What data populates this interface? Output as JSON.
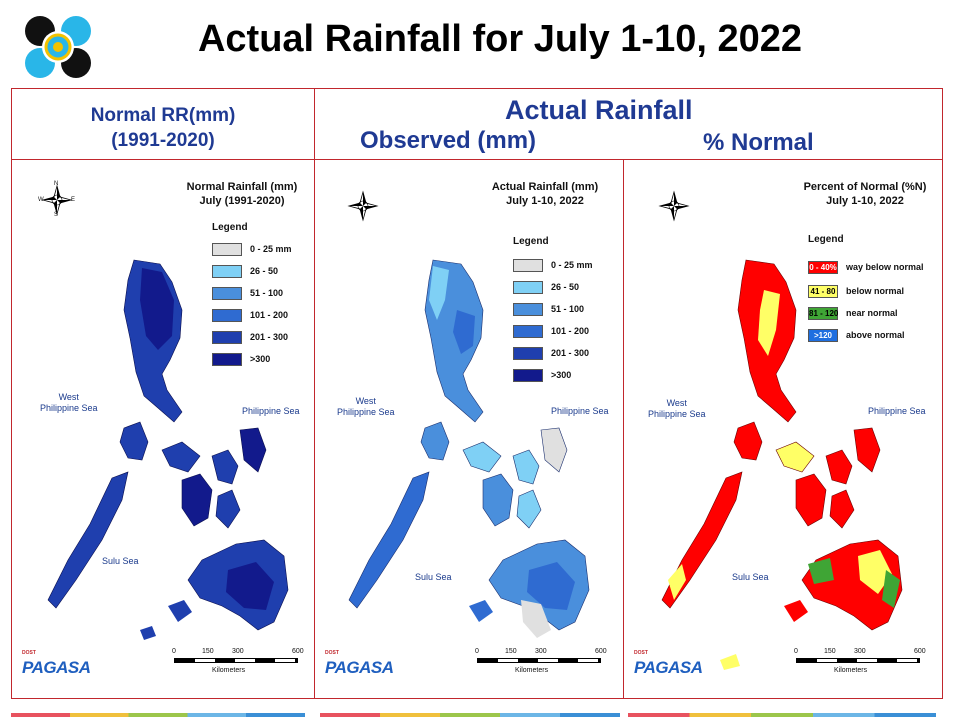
{
  "title": "Actual Rainfall for July 1-10, 2022",
  "headers": {
    "left_line1": "Normal RR(mm)",
    "left_line2": "(1991-2020)",
    "right_top": "Actual Rainfall",
    "right_observed": "Observed (mm)",
    "right_normal": "% Normal"
  },
  "maps": [
    {
      "title_line1": "Normal Rainfall (mm)",
      "title_line2": "July (1991-2020)",
      "legend_title": "Legend",
      "legend": [
        {
          "label": "0 - 25 mm",
          "color": "#e0e0e0"
        },
        {
          "label": "26 - 50",
          "color": "#7fd0f5"
        },
        {
          "label": "51 - 100",
          "color": "#4a8fdc"
        },
        {
          "label": "101 - 200",
          "color": "#2f6bd1"
        },
        {
          "label": "201 - 300",
          "color": "#1f3fae"
        },
        {
          "label": ">300",
          "color": "#121a8c"
        }
      ]
    },
    {
      "title_line1": "Actual Rainfall (mm)",
      "title_line2": "July 1-10, 2022",
      "legend_title": "Legend",
      "legend": [
        {
          "label": "0 - 25 mm",
          "color": "#e0e0e0"
        },
        {
          "label": "26 - 50",
          "color": "#7fd0f5"
        },
        {
          "label": "51 - 100",
          "color": "#4a8fdc"
        },
        {
          "label": "101 - 200",
          "color": "#2f6bd1"
        },
        {
          "label": "201 - 300",
          "color": "#1f3fae"
        },
        {
          "label": ">300",
          "color": "#121a8c"
        }
      ]
    },
    {
      "title_line1": "Percent of Normal (%N)",
      "title_line2": "July 1-10, 2022",
      "legend_title": "Legend",
      "legend": [
        {
          "swatch": "0 - 40%",
          "label": "way below normal",
          "color": "#ff0000"
        },
        {
          "swatch": "41 - 80",
          "label": "below normal",
          "color": "#ffff66"
        },
        {
          "swatch": "81 - 120",
          "label": "near normal",
          "color": "#3fa535"
        },
        {
          "swatch": ">120",
          "label": "above normal",
          "color": "#1f6fe0"
        }
      ]
    }
  ],
  "seas": {
    "west_line1": "West",
    "west_line2": "Philippine Sea",
    "east": "Philippine Sea",
    "sulu": "Sulu Sea"
  },
  "scale": {
    "t0": "0",
    "t1": "150",
    "t2": "300",
    "t3": "600",
    "unit": "Kilometers"
  },
  "compass": {
    "n": "N",
    "s": "S",
    "e": "E",
    "w": "W"
  },
  "pagasa": {
    "doct": "DOST",
    "word": "PAGASA"
  }
}
